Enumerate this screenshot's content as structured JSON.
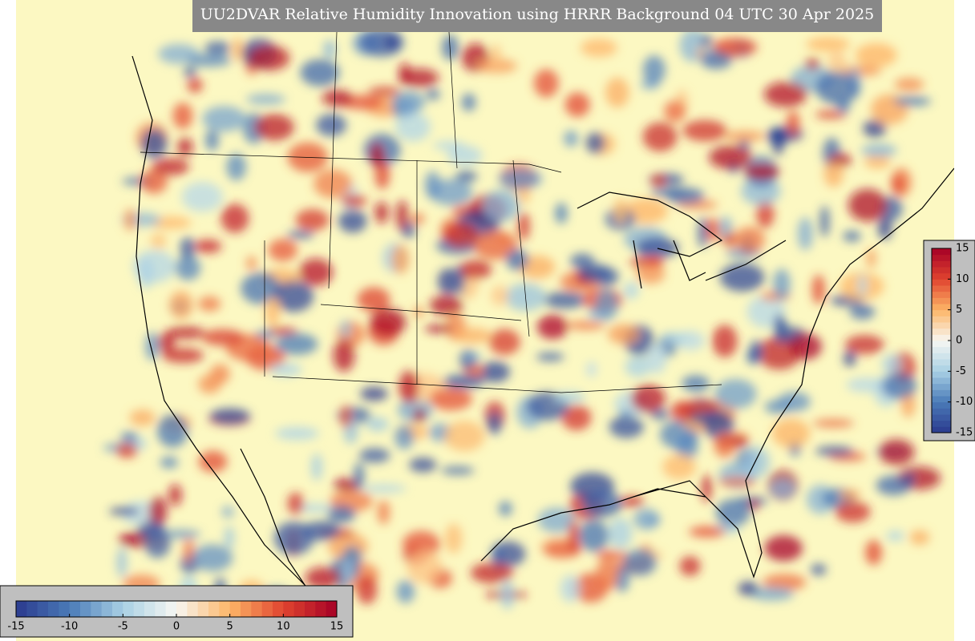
{
  "title": "UU2DVAR Relative Humidity Innovation using HRRR Background 04 UTC 30 Apr 2025",
  "colormap": [
    "#2b3a8e",
    "#4a7ab7",
    "#a8d0e4",
    "#f7f7f2",
    "#fdb567",
    "#e0442f",
    "#a50026"
  ],
  "colorbars": [
    {
      "orientation": "horizontal",
      "lim": [
        -15,
        15
      ],
      "ticks": [
        -15,
        -10,
        -5,
        0,
        5,
        10,
        15
      ]
    },
    {
      "orientation": "vertical",
      "lim": [
        -15,
        15
      ],
      "ticks": [
        -15,
        -10,
        -5,
        0,
        5,
        10,
        15
      ]
    }
  ]
}
